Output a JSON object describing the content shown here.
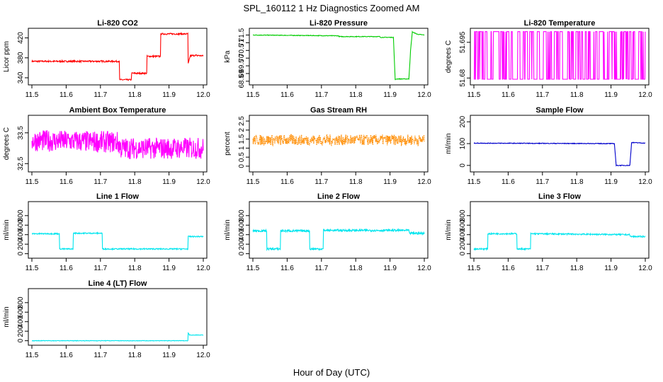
{
  "figure": {
    "title": "SPL_160112  1 Hz Diagnostics Zoomed AM",
    "xlabel": "Hour of Day (UTC)"
  },
  "chart_data": [
    {
      "type": "line",
      "title": "Li-820 CO2",
      "ylabel": "Licor ppm",
      "color": "#ff0000",
      "xlim": [
        11.5,
        12.0
      ],
      "xticks": [
        "11.5",
        "11.6",
        "11.7",
        "11.8",
        "11.9",
        "12.0"
      ],
      "ylim": [
        330,
        435
      ],
      "yticks": [
        340,
        380,
        420
      ],
      "x": [
        11.5,
        11.755,
        11.756,
        11.79,
        11.791,
        11.835,
        11.836,
        11.875,
        11.876,
        11.955,
        11.956,
        11.962,
        11.975,
        12.0
      ],
      "y": [
        373,
        373,
        336,
        336,
        349,
        349,
        383,
        383,
        428,
        428,
        368,
        384,
        385,
        384
      ],
      "noise": 1.5
    },
    {
      "type": "line",
      "title": "Li-820 Pressure",
      "ylabel": "kPa",
      "color": "#00cc00",
      "xlim": [
        11.5,
        12.0
      ],
      "xticks": [
        "11.5",
        "11.6",
        "11.7",
        "11.8",
        "11.9",
        "12.0"
      ],
      "ylim": [
        68.4,
        71.8
      ],
      "yticks": [
        68.5,
        69.0,
        69.5,
        70.0,
        70.5,
        71.0,
        71.5
      ],
      "x": [
        11.5,
        11.75,
        11.751,
        11.87,
        11.871,
        11.91,
        11.915,
        11.92,
        11.955,
        11.96,
        11.965,
        11.98,
        12.0
      ],
      "y": [
        71.5,
        71.45,
        71.4,
        71.4,
        71.35,
        71.35,
        68.6,
        68.65,
        68.65,
        70.5,
        71.7,
        71.55,
        71.5
      ],
      "noise": 0.02
    },
    {
      "type": "line",
      "title": "Li-820 Temperature",
      "ylabel": "degrees C",
      "color": "#ff00ff",
      "xlim": [
        11.5,
        12.0
      ],
      "xticks": [
        "11.5",
        "11.6",
        "11.7",
        "11.8",
        "11.9",
        "12.0"
      ],
      "ylim": [
        51.678,
        51.7
      ],
      "yticks": [
        51.68,
        51.695
      ],
      "levels": [
        51.6795,
        51.6995
      ],
      "switching": true
    },
    {
      "type": "line",
      "title": "Ambient Box Temperature",
      "ylabel": "degrees C",
      "color": "#ff00ff",
      "xlim": [
        11.5,
        12.0
      ],
      "xticks": [
        "11.5",
        "11.6",
        "11.7",
        "11.8",
        "11.9",
        "12.0"
      ],
      "ylim": [
        32.3,
        34.0
      ],
      "yticks": [
        32.5,
        33.5
      ],
      "x": [
        11.5,
        11.75,
        11.76,
        12.0
      ],
      "y": [
        33.25,
        33.2,
        33.0,
        33.0
      ],
      "noise": 0.35
    },
    {
      "type": "scatter",
      "title": "Gas Stream RH",
      "ylabel": "percent",
      "color": "#ff8c00",
      "xlim": [
        11.5,
        12.0
      ],
      "xticks": [
        "11.5",
        "11.6",
        "11.7",
        "11.8",
        "11.9",
        "12.0"
      ],
      "ylim": [
        -0.2,
        2.7
      ],
      "yticks": [
        0.0,
        0.5,
        1.0,
        1.5,
        2.0,
        2.5
      ],
      "x": [
        11.5,
        12.0
      ],
      "y": [
        1.45,
        1.45
      ],
      "noise": 0.3
    },
    {
      "type": "line",
      "title": "Sample Flow",
      "ylabel": "ml/min",
      "color": "#0000cc",
      "xlim": [
        11.5,
        12.0
      ],
      "xticks": [
        "11.5",
        "11.6",
        "11.7",
        "11.8",
        "11.9",
        "12.0"
      ],
      "ylim": [
        -20,
        220
      ],
      "yticks": [
        0,
        100,
        200
      ],
      "x": [
        11.5,
        11.91,
        11.915,
        11.955,
        11.96,
        12.0
      ],
      "y": [
        102,
        100,
        0,
        0,
        105,
        102
      ],
      "noise": 1.5
    },
    {
      "type": "line",
      "title": "Line 1 Flow",
      "ylabel": "ml/min",
      "color": "#00e5ee",
      "xlim": [
        11.5,
        12.0
      ],
      "xticks": [
        "11.5",
        "11.6",
        "11.7",
        "11.8",
        "11.9",
        "12.0"
      ],
      "ylim": [
        -50,
        1050
      ],
      "yticks": [
        0,
        200,
        400,
        600,
        800
      ],
      "x": [
        11.5,
        11.58,
        11.581,
        11.62,
        11.621,
        11.705,
        11.706,
        11.955,
        11.956,
        12.0
      ],
      "y": [
        420,
        420,
        100,
        100,
        430,
        430,
        100,
        100,
        360,
        360
      ],
      "noise": 12
    },
    {
      "type": "line",
      "title": "Line 2 Flow",
      "ylabel": "ml/min",
      "color": "#00e5ee",
      "xlim": [
        11.5,
        12.0
      ],
      "xticks": [
        "11.5",
        "11.6",
        "11.7",
        "11.8",
        "11.9",
        "12.0"
      ],
      "ylim": [
        -50,
        1050
      ],
      "yticks": [
        0,
        200,
        400,
        600,
        800
      ],
      "x": [
        11.5,
        11.54,
        11.541,
        11.58,
        11.581,
        11.665,
        11.666,
        11.705,
        11.706,
        11.955,
        11.956,
        12.0
      ],
      "y": [
        480,
        480,
        100,
        100,
        480,
        480,
        100,
        100,
        490,
        490,
        430,
        430
      ],
      "noise": 22
    },
    {
      "type": "line",
      "title": "Line 3 Flow",
      "ylabel": "ml/min",
      "color": "#00e5ee",
      "xlim": [
        11.5,
        12.0
      ],
      "xticks": [
        "11.5",
        "11.6",
        "11.7",
        "11.8",
        "11.9",
        "12.0"
      ],
      "ylim": [
        -50,
        1050
      ],
      "yticks": [
        0,
        200,
        400,
        600,
        800
      ],
      "x": [
        11.5,
        11.54,
        11.541,
        11.625,
        11.626,
        11.665,
        11.666,
        11.955,
        11.956,
        12.0
      ],
      "y": [
        100,
        100,
        420,
        420,
        100,
        100,
        420,
        400,
        360,
        360
      ],
      "noise": 14
    },
    {
      "type": "line",
      "title": "Line 4 (LT) Flow",
      "ylabel": "ml/min",
      "color": "#00e5ee",
      "xlim": [
        11.5,
        12.0
      ],
      "xticks": [
        "11.5",
        "11.6",
        "11.7",
        "11.8",
        "11.9",
        "12.0"
      ],
      "ylim": [
        -50,
        1050
      ],
      "yticks": [
        0,
        200,
        400,
        600,
        800
      ],
      "x": [
        11.5,
        11.955,
        11.956,
        11.96,
        11.975,
        12.0
      ],
      "y": [
        0,
        0,
        160,
        120,
        120,
        120
      ],
      "noise": 5
    }
  ]
}
